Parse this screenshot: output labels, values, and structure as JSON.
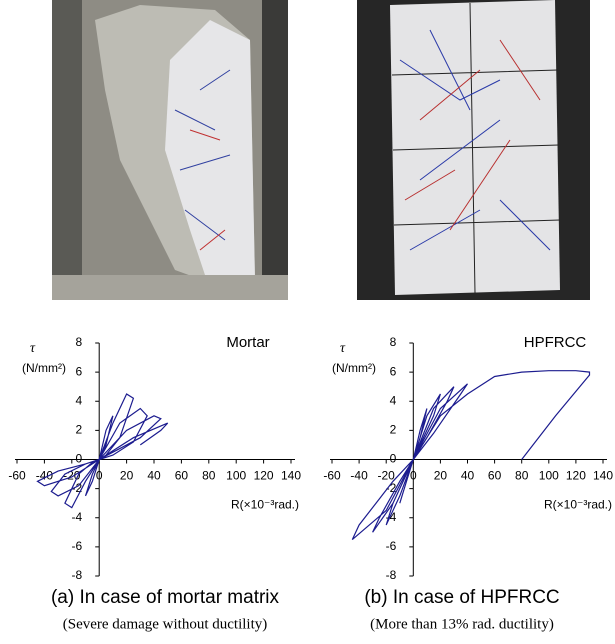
{
  "chart_data": [
    {
      "type": "line",
      "title": "Mortar",
      "y_label": "τ",
      "y_unit": "(N/mm²)",
      "x_label": "R(×10⁻³rad.)",
      "caption": "(a) In case of mortar matrix",
      "subcaption": "(Severe damage without ductility)",
      "color": "#1c1c8f",
      "x": [
        0,
        5,
        10,
        5,
        0,
        -5,
        -10,
        -5,
        0,
        10,
        20,
        25,
        15,
        5,
        0,
        -10,
        -20,
        -25,
        -15,
        -5,
        0,
        15,
        30,
        35,
        25,
        10,
        0,
        -15,
        -30,
        -35,
        -25,
        -10,
        0,
        20,
        40,
        45,
        30,
        10,
        0,
        -20,
        -40,
        -45,
        -30,
        -10,
        0,
        25,
        50,
        45,
        30
      ],
      "values": [
        0,
        2,
        3,
        1,
        0,
        -1.5,
        -2.5,
        -1,
        0,
        2.5,
        4.5,
        4.2,
        1.5,
        0.3,
        0,
        -1.5,
        -3.3,
        -3,
        -1,
        -0.2,
        0,
        2.5,
        3.5,
        3,
        1.2,
        0.3,
        0,
        -1.8,
        -2.5,
        -2.2,
        -1,
        -0.3,
        0,
        2,
        3,
        2.8,
        1.5,
        0.5,
        0,
        -1.2,
        -1.8,
        -1.5,
        -0.8,
        -0.3,
        0,
        1.5,
        2.5,
        2,
        1
      ],
      "xlim": [
        -60,
        140
      ],
      "ylim": [
        -8,
        8
      ],
      "xticks": [
        -60,
        -40,
        -20,
        0,
        20,
        40,
        60,
        80,
        100,
        120,
        140
      ],
      "yticks": [
        -8,
        -6,
        -4,
        -2,
        0,
        2,
        4,
        6,
        8
      ]
    },
    {
      "type": "line",
      "title": "HPFRCC",
      "y_label": "τ",
      "y_unit": "(N/mm²)",
      "x_label": "R(×10⁻³rad.)",
      "caption": "(b) In case of HPFRCC",
      "subcaption": "(More than 13% rad. ductility)",
      "color": "#1c1c8f",
      "x": [
        0,
        5,
        10,
        5,
        0,
        -5,
        -10,
        -5,
        0,
        10,
        20,
        15,
        5,
        0,
        -10,
        -20,
        -15,
        -5,
        0,
        15,
        30,
        25,
        10,
        0,
        -15,
        -30,
        -25,
        -10,
        0,
        20,
        40,
        35,
        15,
        0,
        -20,
        -45,
        -40,
        -15,
        0,
        20,
        40,
        60,
        80,
        100,
        120,
        130,
        130,
        105,
        80
      ],
      "values": [
        0,
        2,
        3.5,
        1.5,
        0,
        -1.5,
        -3,
        -1.5,
        0,
        3,
        4.5,
        3,
        1,
        0,
        -2.5,
        -4.5,
        -3,
        -1,
        0,
        3.5,
        5,
        4,
        1.5,
        0,
        -3,
        -5,
        -4,
        -1.5,
        0,
        3.5,
        5.2,
        4.5,
        1.8,
        0,
        -3.5,
        -5.5,
        -4.5,
        -1.5,
        0,
        3,
        4.5,
        5.7,
        6,
        6.1,
        6.1,
        6,
        5.8,
        3,
        0
      ],
      "xlim": [
        -60,
        140
      ],
      "ylim": [
        -8,
        8
      ],
      "xticks": [
        -60,
        -40,
        -20,
        0,
        20,
        40,
        60,
        80,
        100,
        120,
        140
      ],
      "yticks": [
        -8,
        -6,
        -4,
        -2,
        0,
        2,
        4,
        6,
        8
      ]
    }
  ]
}
